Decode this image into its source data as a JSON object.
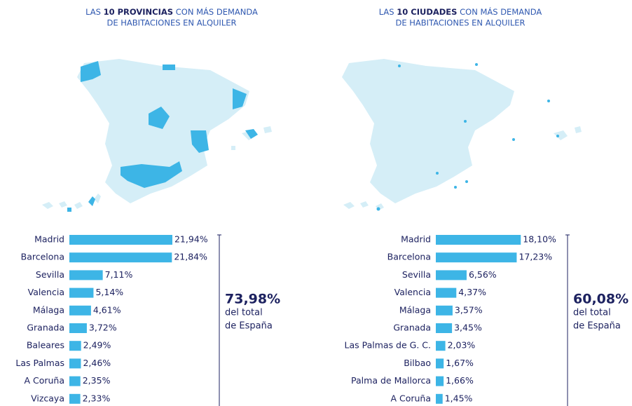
{
  "chart_data": [
    {
      "type": "bar",
      "orientation": "horizontal",
      "title_parts": [
        "LAS",
        "10 PROVINCIAS",
        "CON MÁS DEMANDA",
        "DE HABITACIONES EN ALQUILER"
      ],
      "categories": [
        "Madrid",
        "Barcelona",
        "Sevilla",
        "Valencia",
        "Málaga",
        "Granada",
        "Baleares",
        "Las Palmas",
        "A Coruña",
        "Vizcaya"
      ],
      "values": [
        21.94,
        21.84,
        7.11,
        5.14,
        4.61,
        3.72,
        2.49,
        2.46,
        2.35,
        2.33
      ],
      "value_labels": [
        "21,94%",
        "21,84%",
        "7,11%",
        "5,14%",
        "4,61%",
        "3,72%",
        "2,49%",
        "2,46%",
        "2,35%",
        "2,33%"
      ],
      "color": "#3db5e6",
      "xlim": [
        0,
        22
      ],
      "total_label": "73,98%",
      "total_note": [
        "del total",
        "de España"
      ]
    },
    {
      "type": "bar",
      "orientation": "horizontal",
      "title_parts": [
        "LAS",
        "10 CIUDADES",
        "CON MÁS DEMANDA",
        "DE HABITACIONES EN ALQUILER"
      ],
      "categories": [
        "Madrid",
        "Barcelona",
        "Sevilla",
        "Valencia",
        "Málaga",
        "Granada",
        "Las Palmas de G. C.",
        "Bilbao",
        "Palma de Mallorca",
        "A Coruña"
      ],
      "values": [
        18.1,
        17.23,
        6.56,
        4.37,
        3.57,
        3.45,
        2.03,
        1.67,
        1.66,
        1.45
      ],
      "value_labels": [
        "18,10%",
        "17,23%",
        "6,56%",
        "4,37%",
        "3,57%",
        "3,45%",
        "2,03%",
        "1,67%",
        "1,66%",
        "1,45%"
      ],
      "color": "#3db5e6",
      "xlim": [
        0,
        22
      ],
      "total_label": "60,08%",
      "total_note": [
        "del total",
        "de España"
      ]
    }
  ]
}
